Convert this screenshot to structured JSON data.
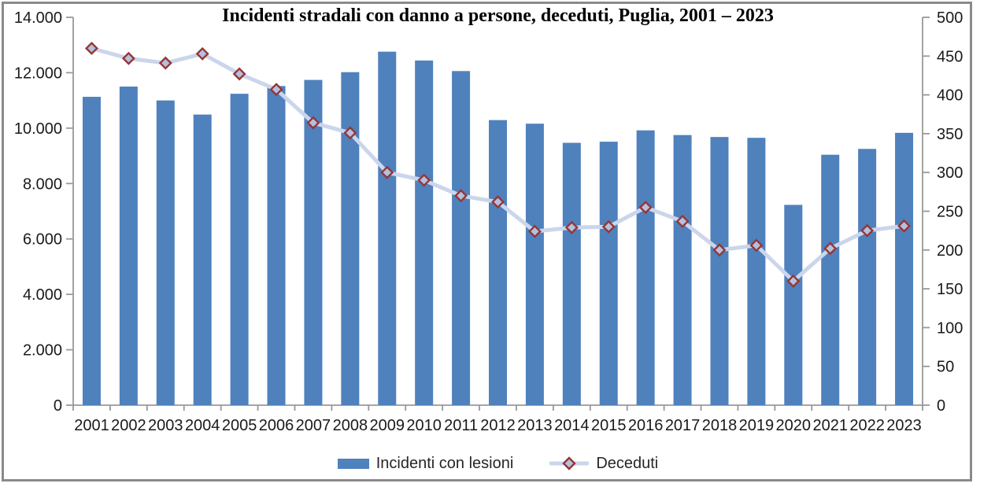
{
  "window": {
    "background_color": "#FFFFFF",
    "frame_border_color": "#8A8A8A"
  },
  "chart_data": {
    "type": "bar",
    "subtype": "bar-line-combo",
    "title": "Incidenti stradali con danno a persone, deceduti, Puglia, 2001 – 2023",
    "categories": [
      "2001",
      "2002",
      "2003",
      "2004",
      "2005",
      "2006",
      "2007",
      "2008",
      "2009",
      "2010",
      "2011",
      "2012",
      "2013",
      "2014",
      "2015",
      "2016",
      "2017",
      "2018",
      "2019",
      "2020",
      "2021",
      "2022",
      "2023"
    ],
    "series": [
      {
        "name": "Incidenti con lesioni",
        "type": "bar",
        "axis": "left",
        "color": "#4F81BD",
        "values": [
          11130,
          11500,
          11000,
          10490,
          11240,
          11520,
          11740,
          12020,
          12760,
          12440,
          12060,
          10290,
          10160,
          9470,
          9510,
          9920,
          9750,
          9680,
          9650,
          7230,
          9040,
          9250,
          9830
        ]
      },
      {
        "name": "Deceduti",
        "type": "line",
        "axis": "right",
        "color": "#CBD5EB",
        "marker": "diamond",
        "marker_fill": "#B4C0E0",
        "marker_border": "#963634",
        "values": [
          460,
          447,
          441,
          453,
          427,
          407,
          364,
          351,
          300,
          290,
          270,
          262,
          224,
          229,
          230,
          255,
          237,
          200,
          206,
          160,
          202,
          225,
          231
        ]
      }
    ],
    "axes": {
      "left": {
        "min": 0,
        "max": 14000,
        "tick_values": [
          0,
          2000,
          4000,
          6000,
          8000,
          10000,
          12000,
          14000
        ],
        "tick_labels": [
          "0",
          "2.000",
          "4.000",
          "6.000",
          "8.000",
          "10.000",
          "12.000",
          "14.000"
        ]
      },
      "right": {
        "min": 0,
        "max": 500,
        "tick_values": [
          0,
          50,
          100,
          150,
          200,
          250,
          300,
          350,
          400,
          450,
          500
        ],
        "tick_labels": [
          "0",
          "50",
          "100",
          "150",
          "200",
          "250",
          "300",
          "350",
          "400",
          "450",
          "500"
        ]
      }
    },
    "grid": "none",
    "legend_position": "bottom",
    "axis_color": "#999999",
    "label_color": "#1A1A1A"
  },
  "legend": {
    "items": [
      {
        "label": "Incidenti con lesioni"
      },
      {
        "label": "Deceduti"
      }
    ]
  }
}
